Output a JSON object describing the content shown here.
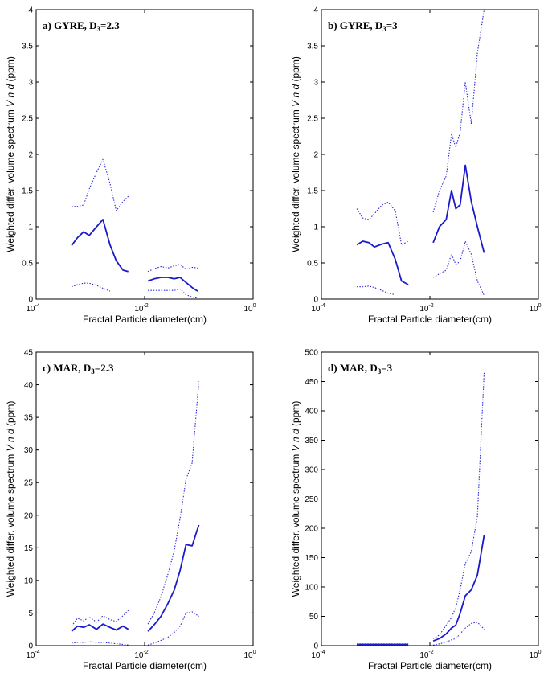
{
  "chart_data": [
    {
      "type": "line",
      "title": "a) GYRE, D",
      "title_sub": "3",
      "title_tail": "=2.3",
      "xlabel": "Fractal Particle diameter(cm)",
      "ylabel_pre": "Weighted differ. volume spectrum",
      "ylabel_var": "V n d",
      "ylabel_post": "(ppm)",
      "x_scale": "log",
      "xlim": [
        0.0001,
        1
      ],
      "x_ticks": [
        {
          "v": 0.0001,
          "base": "10",
          "exp": "-4"
        },
        {
          "v": 0.01,
          "base": "10",
          "exp": "-2"
        },
        {
          "v": 1,
          "base": "10",
          "exp": "0"
        }
      ],
      "ylim": [
        0,
        4
      ],
      "y_ticks": [
        "0",
        "0.5",
        "1",
        "1.5",
        "2",
        "2.5",
        "3",
        "3.5",
        "4"
      ],
      "grid": false,
      "colors": {
        "mean": "#1a1acc",
        "bound": "#2b2bd6"
      },
      "series": [
        {
          "role": "mean",
          "segments": [
            {
              "x": [
                0.00045,
                0.00058,
                0.00075,
                0.00095,
                0.0013,
                0.0017,
                0.0023,
                0.003,
                0.004,
                0.005
              ],
              "y": [
                0.74,
                0.85,
                0.93,
                0.88,
                1.0,
                1.1,
                0.75,
                0.53,
                0.4,
                0.38
              ]
            },
            {
              "x": [
                0.0115,
                0.015,
                0.02,
                0.027,
                0.035,
                0.045,
                0.058,
                0.075,
                0.095
              ],
              "y": [
                0.25,
                0.28,
                0.3,
                0.3,
                0.28,
                0.3,
                0.23,
                0.16,
                0.11
              ]
            }
          ]
        },
        {
          "role": "upper",
          "segments": [
            {
              "x": [
                0.00045,
                0.00058,
                0.00075,
                0.00095,
                0.0013,
                0.0017,
                0.0023,
                0.003,
                0.004,
                0.005
              ],
              "y": [
                1.28,
                1.28,
                1.3,
                1.52,
                1.75,
                1.93,
                1.6,
                1.22,
                1.35,
                1.42
              ]
            },
            {
              "x": [
                0.0115,
                0.015,
                0.02,
                0.027,
                0.035,
                0.045,
                0.058,
                0.075,
                0.095
              ],
              "y": [
                0.38,
                0.42,
                0.45,
                0.43,
                0.46,
                0.48,
                0.41,
                0.44,
                0.43
              ]
            }
          ]
        },
        {
          "role": "lower",
          "segments": [
            {
              "x": [
                0.00045,
                0.00058,
                0.00075,
                0.00095,
                0.0013,
                0.0017,
                0.0023
              ],
              "y": [
                0.17,
                0.2,
                0.22,
                0.22,
                0.19,
                0.15,
                0.11
              ]
            },
            {
              "x": [
                0.0115,
                0.015,
                0.02,
                0.027,
                0.035,
                0.045,
                0.058,
                0.075,
                0.095
              ],
              "y": [
                0.12,
                0.12,
                0.12,
                0.12,
                0.12,
                0.14,
                0.06,
                0.03,
                0.01
              ]
            }
          ]
        }
      ]
    },
    {
      "type": "line",
      "title": "b) GYRE, D",
      "title_sub": "3",
      "title_tail": "=3",
      "xlabel": "Fractal Particle diameter(cm)",
      "ylabel_pre": "Weighted differ. volume spectrum",
      "ylabel_var": "V n d",
      "ylabel_post": "(ppm)",
      "x_scale": "log",
      "xlim": [
        0.0001,
        1
      ],
      "x_ticks": [
        {
          "v": 0.0001,
          "base": "10",
          "exp": "-4"
        },
        {
          "v": 0.01,
          "base": "10",
          "exp": "-2"
        },
        {
          "v": 1,
          "base": "10",
          "exp": "0"
        }
      ],
      "ylim": [
        0,
        4
      ],
      "y_ticks": [
        "0",
        "0.5",
        "1",
        "1.5",
        "2",
        "2.5",
        "3",
        "3.5",
        "4"
      ],
      "grid": false,
      "colors": {
        "mean": "#1a1acc",
        "bound": "#2b2bd6"
      },
      "series": [
        {
          "role": "mean",
          "segments": [
            {
              "x": [
                0.00045,
                0.00058,
                0.00075,
                0.00095,
                0.0013,
                0.0017,
                0.0023,
                0.003,
                0.004
              ],
              "y": [
                0.75,
                0.8,
                0.78,
                0.72,
                0.76,
                0.78,
                0.55,
                0.25,
                0.2
              ]
            },
            {
              "x": [
                0.0115,
                0.015,
                0.02,
                0.025,
                0.03,
                0.036,
                0.045,
                0.058,
                0.075,
                0.1
              ],
              "y": [
                0.78,
                1.0,
                1.1,
                1.5,
                1.25,
                1.3,
                1.85,
                1.35,
                1.0,
                0.64
              ]
            }
          ]
        },
        {
          "role": "upper",
          "segments": [
            {
              "x": [
                0.00045,
                0.00058,
                0.00075,
                0.00095,
                0.0013,
                0.0017,
                0.0023,
                0.003,
                0.004
              ],
              "y": [
                1.25,
                1.12,
                1.1,
                1.18,
                1.3,
                1.34,
                1.22,
                0.75,
                0.8
              ]
            },
            {
              "x": [
                0.0115,
                0.015,
                0.02,
                0.025,
                0.03,
                0.036,
                0.045,
                0.058,
                0.075,
                0.1
              ],
              "y": [
                1.2,
                1.5,
                1.7,
                2.28,
                2.1,
                2.3,
                3.0,
                2.42,
                3.4,
                4.0
              ]
            }
          ]
        },
        {
          "role": "lower",
          "segments": [
            {
              "x": [
                0.00045,
                0.00058,
                0.00075,
                0.00095,
                0.0013,
                0.0017,
                0.0023
              ],
              "y": [
                0.17,
                0.17,
                0.18,
                0.16,
                0.12,
                0.08,
                0.06
              ]
            },
            {
              "x": [
                0.0115,
                0.015,
                0.02,
                0.025,
                0.03,
                0.036,
                0.045,
                0.058,
                0.075,
                0.1
              ],
              "y": [
                0.3,
                0.35,
                0.4,
                0.62,
                0.48,
                0.52,
                0.8,
                0.62,
                0.25,
                0.05
              ]
            }
          ]
        }
      ]
    },
    {
      "type": "line",
      "title": "c) MAR, D",
      "title_sub": "3",
      "title_tail": "=2.3",
      "xlabel": "Fractal Particle diameter(cm)",
      "ylabel_pre": "Weighted differ. volume spectrum",
      "ylabel_var": "V n d",
      "ylabel_post": "(ppm)",
      "x_scale": "log",
      "xlim": [
        0.0001,
        1
      ],
      "x_ticks": [
        {
          "v": 0.0001,
          "base": "10",
          "exp": "-4"
        },
        {
          "v": 0.01,
          "base": "10",
          "exp": "-2"
        },
        {
          "v": 1,
          "base": "10",
          "exp": "0"
        }
      ],
      "ylim": [
        0,
        45
      ],
      "y_ticks": [
        "0",
        "5",
        "10",
        "15",
        "20",
        "25",
        "30",
        "35",
        "40",
        "45"
      ],
      "grid": false,
      "colors": {
        "mean": "#1a1acc",
        "bound": "#2b2bd6"
      },
      "series": [
        {
          "role": "mean",
          "segments": [
            {
              "x": [
                0.00045,
                0.00058,
                0.00075,
                0.00095,
                0.0013,
                0.0017,
                0.0023,
                0.003,
                0.004,
                0.005
              ],
              "y": [
                2.2,
                3.0,
                2.8,
                3.2,
                2.5,
                3.3,
                2.8,
                2.4,
                3.0,
                2.5
              ]
            },
            {
              "x": [
                0.0115,
                0.015,
                0.02,
                0.027,
                0.035,
                0.045,
                0.058,
                0.075,
                0.1
              ],
              "y": [
                2.2,
                3.2,
                4.5,
                6.5,
                8.5,
                11.5,
                15.5,
                15.3,
                18.5
              ]
            }
          ]
        },
        {
          "role": "upper",
          "segments": [
            {
              "x": [
                0.00045,
                0.00058,
                0.00075,
                0.00095,
                0.0013,
                0.0017,
                0.0023,
                0.003,
                0.004,
                0.005
              ],
              "y": [
                3.0,
                4.2,
                3.8,
                4.4,
                3.6,
                4.6,
                4.0,
                3.7,
                4.6,
                5.4
              ]
            },
            {
              "x": [
                0.0115,
                0.015,
                0.02,
                0.027,
                0.035,
                0.045,
                0.058,
                0.075,
                0.1
              ],
              "y": [
                3.3,
                5.0,
                7.5,
                11.0,
                14.5,
                19.5,
                25.5,
                28.0,
                40.5
              ]
            }
          ]
        },
        {
          "role": "lower",
          "segments": [
            {
              "x": [
                0.00045,
                0.00058,
                0.00075,
                0.00095,
                0.0013,
                0.0017,
                0.0023,
                0.003,
                0.004,
                0.005
              ],
              "y": [
                0.4,
                0.5,
                0.5,
                0.6,
                0.5,
                0.5,
                0.4,
                0.3,
                0.2,
                0.1
              ]
            },
            {
              "x": [
                0.0115,
                0.015,
                0.02,
                0.027,
                0.035,
                0.045,
                0.058,
                0.075,
                0.1
              ],
              "y": [
                0.1,
                0.4,
                0.8,
                1.3,
                2.0,
                3.0,
                5.0,
                5.2,
                4.5
              ]
            }
          ]
        }
      ]
    },
    {
      "type": "line",
      "title": "d) MAR, D",
      "title_sub": "3",
      "title_tail": "=3",
      "xlabel": "Fractal Particle diameter(cm)",
      "ylabel_pre": "Weighted differ. volume spectrum",
      "ylabel_var": "V n d",
      "ylabel_post": "(ppm)",
      "x_scale": "log",
      "xlim": [
        0.0001,
        1
      ],
      "x_ticks": [
        {
          "v": 0.0001,
          "base": "10",
          "exp": "-4"
        },
        {
          "v": 0.01,
          "base": "10",
          "exp": "-2"
        },
        {
          "v": 1,
          "base": "10",
          "exp": "0"
        }
      ],
      "ylim": [
        0,
        500
      ],
      "y_ticks": [
        "0",
        "50",
        "100",
        "150",
        "200",
        "250",
        "300",
        "350",
        "400",
        "450",
        "500"
      ],
      "grid": false,
      "colors": {
        "mean": "#1a1acc",
        "bound": "#2b2bd6"
      },
      "series": [
        {
          "role": "mean",
          "segments": [
            {
              "x": [
                0.00045,
                0.00058,
                0.00075,
                0.00095,
                0.0013,
                0.0017,
                0.0023,
                0.003,
                0.004
              ],
              "y": [
                2,
                2,
                2,
                2,
                2,
                2,
                2,
                2,
                2
              ]
            },
            {
              "x": [
                0.0115,
                0.015,
                0.02,
                0.025,
                0.03,
                0.036,
                0.045,
                0.058,
                0.075,
                0.1
              ],
              "y": [
                8,
                12,
                20,
                30,
                35,
                55,
                85,
                95,
                120,
                188
              ]
            }
          ]
        },
        {
          "role": "upper",
          "segments": [
            {
              "x": [
                0.00045,
                0.00058,
                0.00075,
                0.00095,
                0.0013,
                0.0017,
                0.0023,
                0.003,
                0.004
              ],
              "y": [
                3,
                3,
                3,
                3,
                3,
                3,
                3,
                3,
                3
              ]
            },
            {
              "x": [
                0.0115,
                0.015,
                0.02,
                0.025,
                0.03,
                0.036,
                0.045,
                0.058,
                0.075,
                0.1
              ],
              "y": [
                12,
                18,
                35,
                48,
                65,
                95,
                140,
                160,
                220,
                465
              ]
            }
          ]
        },
        {
          "role": "lower",
          "segments": [
            {
              "x": [
                0.00045,
                0.00058,
                0.00075,
                0.00095,
                0.0013,
                0.0017,
                0.0023,
                0.003,
                0.004
              ],
              "y": [
                1,
                1,
                1,
                1,
                1,
                1,
                1,
                1,
                1
              ]
            },
            {
              "x": [
                0.0115,
                0.015,
                0.02,
                0.025,
                0.03,
                0.036,
                0.045,
                0.058,
                0.075,
                0.1
              ],
              "y": [
                1,
                3,
                6,
                10,
                12,
                20,
                30,
                38,
                40,
                28
              ]
            }
          ]
        }
      ]
    }
  ]
}
